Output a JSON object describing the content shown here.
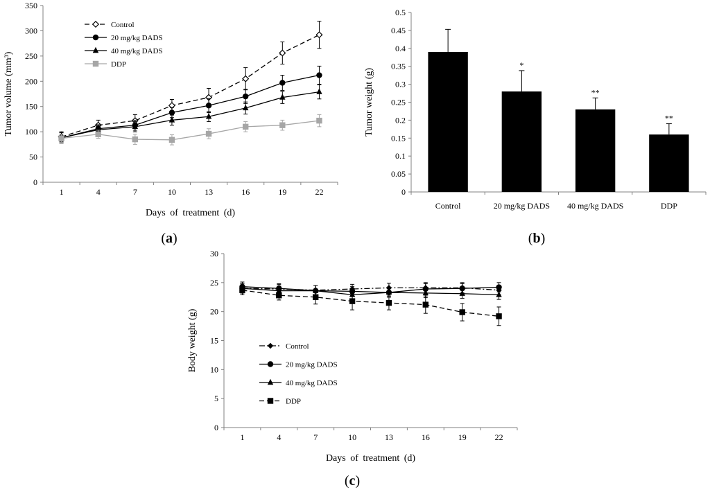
{
  "panel_labels": {
    "a": "(a)",
    "b": "(b)",
    "c": "(c)"
  },
  "colors": {
    "black": "#000000",
    "gray": "#a6a6a6",
    "axis": "#808080"
  },
  "chart_data": [
    {
      "id": "a",
      "type": "line",
      "xlabel": "Days of treatment (d)",
      "ylabel": "Tumor volume (mm³)",
      "ylim": [
        0,
        350
      ],
      "yticks": [
        0,
        50,
        100,
        150,
        200,
        250,
        300,
        350
      ],
      "x": [
        1,
        4,
        7,
        10,
        13,
        16,
        19,
        22
      ],
      "legend_position": "top-left",
      "series": [
        {
          "name": "Control",
          "marker": "diamond-open",
          "dash": "dash",
          "color": "#000000",
          "values": [
            90,
            113,
            122,
            152,
            168,
            205,
            256,
            292
          ],
          "errors": [
            10,
            10,
            12,
            12,
            18,
            22,
            22,
            27
          ]
        },
        {
          "name": "20 mg/kg DADS",
          "marker": "circle",
          "dash": "solid",
          "color": "#000000",
          "values": [
            88,
            106,
            113,
            138,
            152,
            170,
            197,
            212
          ],
          "errors": [
            10,
            8,
            10,
            10,
            14,
            14,
            15,
            18
          ]
        },
        {
          "name": "40 mg/kg  DADS",
          "marker": "triangle",
          "dash": "solid",
          "color": "#000000",
          "values": [
            88,
            104,
            110,
            123,
            130,
            147,
            168,
            179
          ],
          "errors": [
            10,
            8,
            10,
            10,
            10,
            12,
            12,
            14
          ]
        },
        {
          "name": "DDP",
          "marker": "square",
          "dash": "solid",
          "color": "#a6a6a6",
          "values": [
            87,
            95,
            85,
            84,
            96,
            110,
            113,
            122
          ],
          "errors": [
            8,
            8,
            10,
            10,
            10,
            10,
            10,
            12
          ]
        }
      ]
    },
    {
      "id": "b",
      "type": "bar",
      "ylabel": "Tumor weight (g)",
      "ylim": [
        0,
        0.5
      ],
      "yticks": [
        "0",
        "0.05",
        "0.1",
        "0.15",
        "0.2",
        "0.25",
        "0.3",
        "0.35",
        "0.4",
        "0.45",
        "0.5"
      ],
      "categories": [
        "Control",
        "20 mg/kg DADS",
        "40 mg/kg  DADS",
        "DDP"
      ],
      "values": [
        0.39,
        0.28,
        0.23,
        0.16
      ],
      "errors": [
        0.063,
        0.058,
        0.032,
        0.03
      ],
      "annotations": [
        "",
        "*",
        "**",
        "**"
      ]
    },
    {
      "id": "c",
      "type": "line",
      "xlabel": "Days of treatment (d)",
      "ylabel": "Body weight (g)",
      "ylim": [
        0,
        30
      ],
      "yticks": [
        0,
        5,
        10,
        15,
        20,
        25,
        30
      ],
      "x": [
        1,
        4,
        7,
        10,
        13,
        16,
        19,
        22
      ],
      "legend_position": "bottom-left",
      "series": [
        {
          "name": "Control",
          "marker": "diamond",
          "dash": "dashdot",
          "color": "#000000",
          "values": [
            24.0,
            23.9,
            23.7,
            23.9,
            24.1,
            24.1,
            24.1,
            23.7
          ],
          "errors": [
            0.8,
            0.8,
            0.8,
            0.8,
            0.8,
            0.9,
            0.9,
            0.8
          ]
        },
        {
          "name": "20 mg/kg DADS",
          "marker": "circle",
          "dash": "solid",
          "color": "#000000",
          "values": [
            24.3,
            24.0,
            23.6,
            23.5,
            23.3,
            23.9,
            24.0,
            24.2
          ],
          "errors": [
            0.8,
            0.8,
            0.9,
            0.8,
            0.8,
            0.9,
            0.8,
            0.8
          ]
        },
        {
          "name": "40 mg/kg  DADS",
          "marker": "triangle",
          "dash": "solid",
          "color": "#000000",
          "values": [
            24.0,
            23.6,
            23.6,
            22.9,
            23.3,
            23.2,
            23.1,
            22.9
          ],
          "errors": [
            0.8,
            0.8,
            0.9,
            0.9,
            0.8,
            0.8,
            0.8,
            0.8
          ]
        },
        {
          "name": "DDP",
          "marker": "square",
          "dash": "dash",
          "color": "#000000",
          "values": [
            23.7,
            22.8,
            22.5,
            21.8,
            21.5,
            21.2,
            19.9,
            19.2
          ],
          "errors": [
            0.8,
            0.8,
            1.2,
            1.5,
            1.2,
            1.5,
            1.5,
            1.6
          ]
        }
      ]
    }
  ]
}
